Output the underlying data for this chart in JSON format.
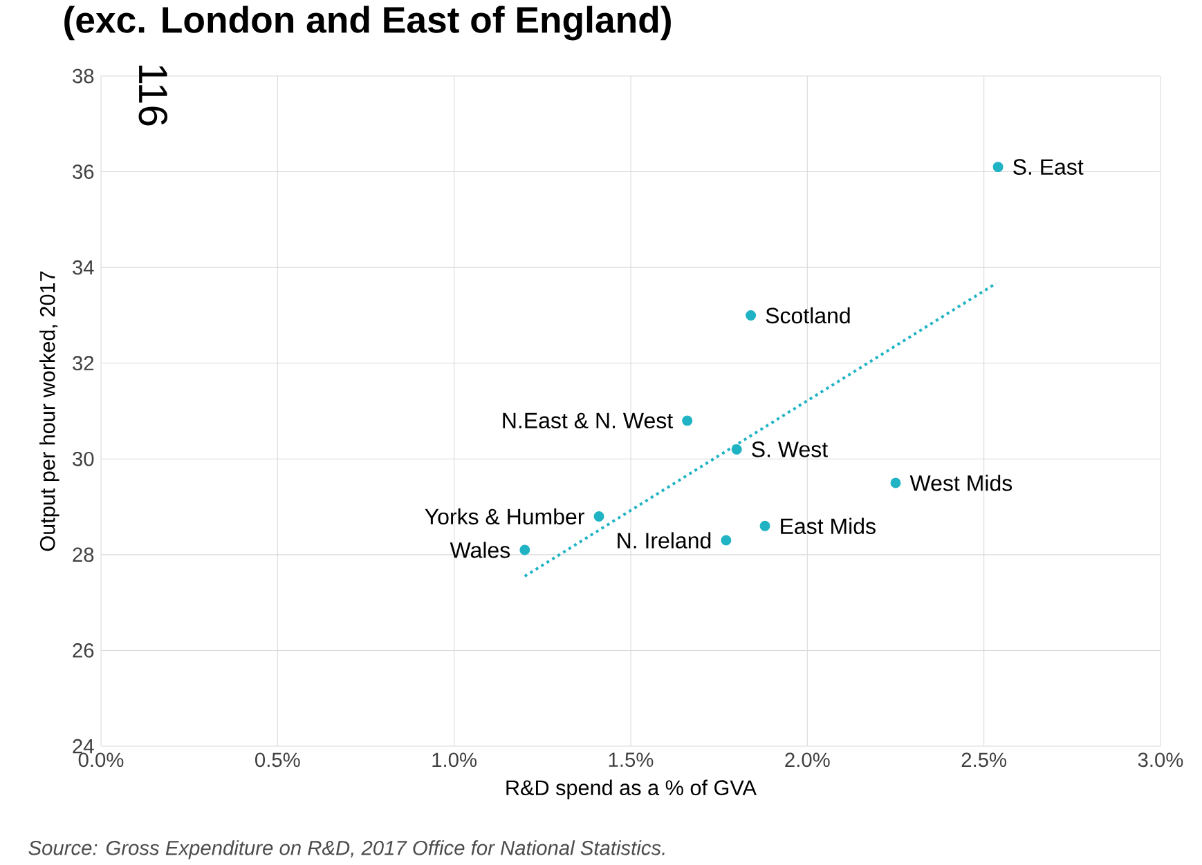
{
  "chart_data": {
    "type": "scatter",
    "title": "(exc. London and East of England)",
    "xlabel": "R&D spend as a % of GVA",
    "ylabel": "Output per hour worked, 2017",
    "annotations": [
      "116",
      "Source: Gross Expenditure on R&D, 2017 Office for National Statistics."
    ],
    "xlim": [
      0,
      3
    ],
    "ylim": [
      24,
      38
    ],
    "xticks": [
      {
        "value": 0,
        "label": "0.0%"
      },
      {
        "value": 0.5,
        "label": "0.5%"
      },
      {
        "value": 1,
        "label": "1.0%"
      },
      {
        "value": 1.5,
        "label": "1.5%"
      },
      {
        "value": 2,
        "label": "2.0%"
      },
      {
        "value": 2.5,
        "label": "2.5%"
      },
      {
        "value": 3,
        "label": "3.0%"
      }
    ],
    "yticks": [
      24,
      26,
      28,
      30,
      32,
      34,
      36,
      38
    ],
    "grid": true,
    "marker": "circle",
    "series": [
      {
        "name": "S. East",
        "color": "#1fb3c4",
        "x": [
          2.54
        ],
        "values": [
          36.1
        ]
      },
      {
        "name": "Scotland",
        "color": "#1fb3c4",
        "x": [
          1.84
        ],
        "values": [
          33.0
        ]
      },
      {
        "name": "N.East & N. West",
        "color": "#1fb3c4",
        "x": [
          1.66
        ],
        "values": [
          30.8
        ]
      },
      {
        "name": "S. West",
        "color": "#1fb3c4",
        "x": [
          1.8
        ],
        "values": [
          30.2
        ]
      },
      {
        "name": "West Mids",
        "color": "#1fb3c4",
        "x": [
          2.25
        ],
        "values": [
          29.5
        ]
      },
      {
        "name": "Yorks & Humber",
        "color": "#1fb3c4",
        "x": [
          1.41
        ],
        "values": [
          28.8
        ]
      },
      {
        "name": "East Mids",
        "color": "#1fb3c4",
        "x": [
          1.88
        ],
        "values": [
          28.6
        ]
      },
      {
        "name": "N. Ireland",
        "color": "#1fb3c4",
        "x": [
          1.77
        ],
        "values": [
          28.3
        ]
      },
      {
        "name": "Wales",
        "color": "#1fb3c4",
        "x": [
          1.2
        ],
        "values": [
          28.1
        ]
      },
      {
        "type": "line",
        "line_style": "dotted",
        "marker": "none",
        "color": "#1fb3c4",
        "x": [
          1.2,
          2.535
        ],
        "values": [
          27.55,
          33.67
        ]
      }
    ]
  }
}
